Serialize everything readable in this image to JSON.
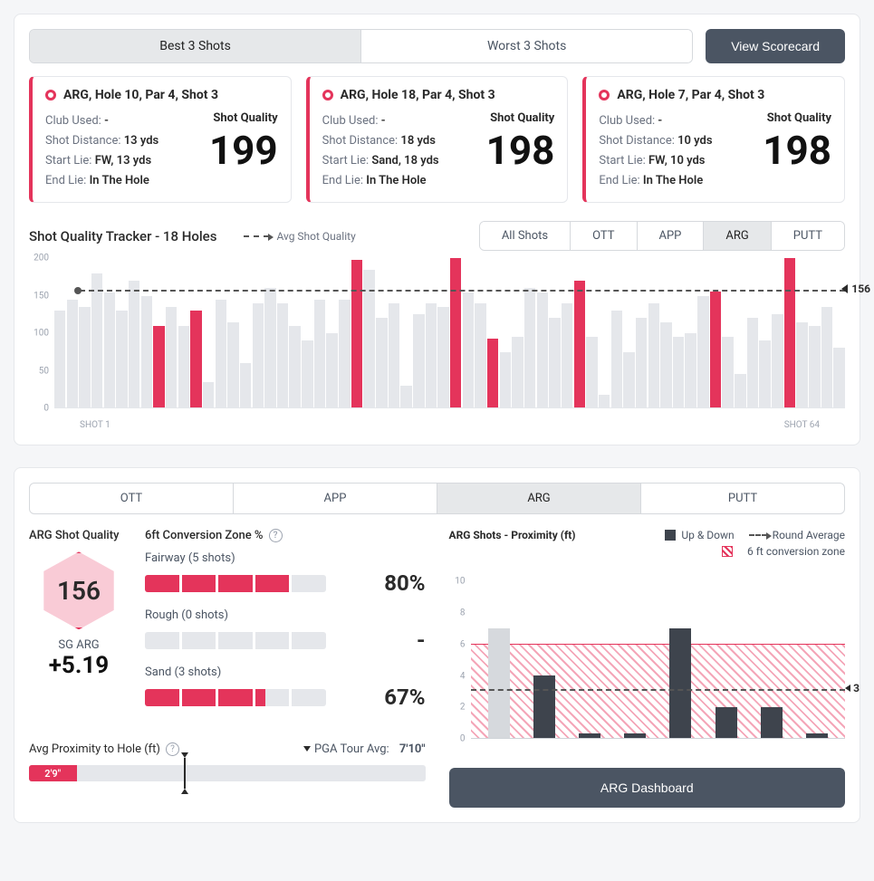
{
  "colors": {
    "accent": "#e4345b",
    "grey_bar": "#e5e7eb",
    "dark_bar": "#3e444d",
    "text": "#2a2a2a",
    "muted": "#6b7280"
  },
  "top": {
    "tabs": {
      "best": "Best 3 Shots",
      "worst": "Worst 3 Shots",
      "active": "best"
    },
    "view_btn": "View Scorecard"
  },
  "cards": [
    {
      "title": "ARG, Hole 10, Par 4, Shot 3",
      "club": "-",
      "distance": "13 yds",
      "start_lie": "FW, 13 yds",
      "end_lie": "In The Hole",
      "quality": "199"
    },
    {
      "title": "ARG, Hole 18, Par 4, Shot 3",
      "club": "-",
      "distance": "18 yds",
      "start_lie": "Sand, 18 yds",
      "end_lie": "In The Hole",
      "quality": "198"
    },
    {
      "title": "ARG, Hole 7, Par 4, Shot 3",
      "club": "-",
      "distance": "10 yds",
      "start_lie": "FW, 10 yds",
      "end_lie": "In The Hole",
      "quality": "198"
    }
  ],
  "labels": {
    "club": "Club Used: ",
    "distance": "Shot Distance: ",
    "start_lie": "Start Lie: ",
    "end_lie": "End Lie: ",
    "shot_quality": "Shot Quality"
  },
  "tracker": {
    "title": "Shot Quality Tracker - 18 Holes",
    "avg_label": "Avg Shot Quality",
    "filters": [
      "All Shots",
      "OTT",
      "APP",
      "ARG",
      "PUTT"
    ],
    "active_filter": "ARG",
    "ylim": [
      0,
      200
    ],
    "ytick_step": 50,
    "avg_value": 156,
    "x_first": "SHOT 1",
    "x_last": "SHOT 64",
    "bars": [
      {
        "v": 130,
        "h": false
      },
      {
        "v": 145,
        "h": false
      },
      {
        "v": 135,
        "h": false
      },
      {
        "v": 180,
        "h": false
      },
      {
        "v": 155,
        "h": false
      },
      {
        "v": 130,
        "h": false
      },
      {
        "v": 170,
        "h": false
      },
      {
        "v": 150,
        "h": false
      },
      {
        "v": 110,
        "h": true
      },
      {
        "v": 135,
        "h": false
      },
      {
        "v": 110,
        "h": false
      },
      {
        "v": 130,
        "h": true
      },
      {
        "v": 35,
        "h": false
      },
      {
        "v": 145,
        "h": false
      },
      {
        "v": 115,
        "h": false
      },
      {
        "v": 60,
        "h": false
      },
      {
        "v": 140,
        "h": false
      },
      {
        "v": 160,
        "h": false
      },
      {
        "v": 140,
        "h": false
      },
      {
        "v": 110,
        "h": false
      },
      {
        "v": 90,
        "h": false
      },
      {
        "v": 145,
        "h": false
      },
      {
        "v": 100,
        "h": false
      },
      {
        "v": 145,
        "h": false
      },
      {
        "v": 198,
        "h": true
      },
      {
        "v": 185,
        "h": false
      },
      {
        "v": 120,
        "h": false
      },
      {
        "v": 140,
        "h": false
      },
      {
        "v": 30,
        "h": false
      },
      {
        "v": 125,
        "h": false
      },
      {
        "v": 140,
        "h": false
      },
      {
        "v": 135,
        "h": false
      },
      {
        "v": 200,
        "h": true
      },
      {
        "v": 155,
        "h": false
      },
      {
        "v": 140,
        "h": false
      },
      {
        "v": 92,
        "h": true
      },
      {
        "v": 75,
        "h": false
      },
      {
        "v": 95,
        "h": false
      },
      {
        "v": 160,
        "h": false
      },
      {
        "v": 155,
        "h": false
      },
      {
        "v": 120,
        "h": false
      },
      {
        "v": 140,
        "h": false
      },
      {
        "v": 170,
        "h": true
      },
      {
        "v": 95,
        "h": false
      },
      {
        "v": 18,
        "h": false
      },
      {
        "v": 130,
        "h": false
      },
      {
        "v": 75,
        "h": false
      },
      {
        "v": 120,
        "h": false
      },
      {
        "v": 140,
        "h": false
      },
      {
        "v": 115,
        "h": false
      },
      {
        "v": 95,
        "h": false
      },
      {
        "v": 100,
        "h": false
      },
      {
        "v": 150,
        "h": false
      },
      {
        "v": 156,
        "h": true
      },
      {
        "v": 95,
        "h": false
      },
      {
        "v": 45,
        "h": false
      },
      {
        "v": 120,
        "h": false
      },
      {
        "v": 90,
        "h": false
      },
      {
        "v": 125,
        "h": false
      },
      {
        "v": 200,
        "h": true
      },
      {
        "v": 115,
        "h": false
      },
      {
        "v": 110,
        "h": false
      },
      {
        "v": 135,
        "h": false
      },
      {
        "v": 80,
        "h": false
      }
    ]
  },
  "panel2": {
    "tabs": [
      "OTT",
      "APP",
      "ARG",
      "PUTT"
    ],
    "active": "ARG",
    "sq_title": "ARG Shot Quality",
    "hex_value": "156",
    "sg_label": "SG ARG",
    "sg_value": "+5.19",
    "conv_title": "6ft Conversion Zone %",
    "conv": [
      {
        "name": "Fairway (5 shots)",
        "segments": 5,
        "filled": 4,
        "pct": "80%"
      },
      {
        "name": "Rough (0 shots)",
        "segments": 5,
        "filled": 0,
        "pct": "-"
      },
      {
        "name": "Sand (3 shots)",
        "segments": 5,
        "filled": 3.3,
        "pct": "67%"
      }
    ],
    "prox_title": "ARG Shots - Proximity (ft)",
    "legend": {
      "updown": "Up & Down",
      "roundavg": "Round Average",
      "zone": "6 ft conversion zone"
    },
    "prox": {
      "ylim": [
        0,
        11
      ],
      "yticks": [
        0,
        2,
        4,
        6,
        8,
        10
      ],
      "zone_top": 6,
      "avg_value": 3,
      "bars": [
        {
          "v": 7,
          "grey": true
        },
        {
          "v": 4,
          "grey": false
        },
        {
          "v": 0.3,
          "grey": false
        },
        {
          "v": 0.3,
          "grey": false
        },
        {
          "v": 7,
          "grey": false
        },
        {
          "v": 2,
          "grey": false
        },
        {
          "v": 2,
          "grey": false
        },
        {
          "v": 0.3,
          "grey": false
        }
      ]
    },
    "dash_btn": "ARG Dashboard",
    "avgprox": {
      "title": "Avg Proximity to Hole (ft)",
      "pga_label": "PGA Tour Avg:",
      "pga_value": "7'10\"",
      "fill_pct": 12,
      "fill_text": "2'9\"",
      "marker_pct": 39
    }
  }
}
